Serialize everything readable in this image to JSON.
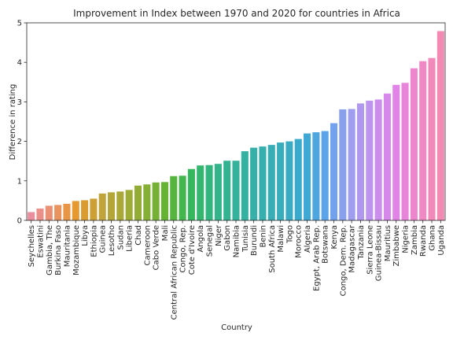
{
  "chart_data": {
    "type": "bar",
    "title": "Improvement in Index between 1970 and 2020 for countries in Africa",
    "xlabel": "Country",
    "ylabel": "Difference in rating",
    "ylim": [
      0,
      5
    ],
    "yticks": [
      "0",
      "1",
      "2",
      "3",
      "4",
      "5"
    ],
    "grid": false,
    "legend": "none",
    "categories": [
      "Seychelles",
      "Eswatini",
      "Gambia, The",
      "Burkina Faso",
      "Mauritania",
      "Mozambique",
      "Libya",
      "Ethiopia",
      "Guinea",
      "Lesotho",
      "Sudan",
      "Liberia",
      "Chad",
      "Cameroon",
      "Cabo Verde",
      "Mali",
      "Central African Republic",
      "Congo, Rep.",
      "Cote d'Ivoire",
      "Angola",
      "Senegal",
      "Niger",
      "Gabon",
      "Namibia",
      "Tunisia",
      "Burundi",
      "Benin",
      "South Africa",
      "Malawi",
      "Togo",
      "Morocco",
      "Algeria",
      "Egypt, Arab Rep.",
      "Botswana",
      "Kenya",
      "Congo, Dem. Rep.",
      "Madagascar",
      "Tanzania",
      "Sierra Leone",
      "Guinea-Bissau",
      "Mauritius",
      "Zimbabwe",
      "Nigeria",
      "Zambia",
      "Rwanda",
      "Ghana",
      "Uganda"
    ],
    "values": [
      0.21,
      0.3,
      0.37,
      0.39,
      0.42,
      0.49,
      0.51,
      0.55,
      0.68,
      0.71,
      0.73,
      0.77,
      0.88,
      0.91,
      0.96,
      0.97,
      1.12,
      1.13,
      1.3,
      1.39,
      1.4,
      1.43,
      1.51,
      1.51,
      1.75,
      1.84,
      1.87,
      1.91,
      1.97,
      2.0,
      2.06,
      2.2,
      2.23,
      2.26,
      2.46,
      2.81,
      2.82,
      2.96,
      3.03,
      3.06,
      3.21,
      3.43,
      3.48,
      3.85,
      4.03,
      4.11,
      4.79
    ],
    "palette": [
      "#ea8e9e",
      "#ea9269",
      "#e6992b",
      "#c4a23a",
      "#a6a938",
      "#8aae35",
      "#61b433",
      "#35b75c",
      "#33b487",
      "#34b29b",
      "#36b0ac",
      "#38adbd",
      "#3aa9d0",
      "#5fa3ec",
      "#9c9eee",
      "#c392ee",
      "#e183e9",
      "#f087c7",
      "#f28ab4"
    ]
  }
}
